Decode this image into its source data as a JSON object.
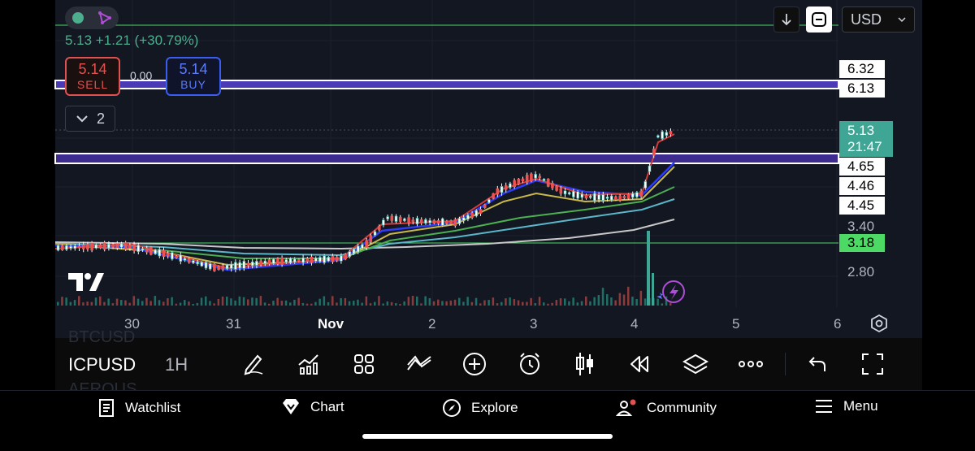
{
  "header": {
    "price_change": "5.13  +1.21 (+30.79%)",
    "sell": {
      "price": "5.14",
      "label": "SELL"
    },
    "buy": {
      "price": "5.14",
      "label": "BUY"
    },
    "spread": "0.00",
    "indicators_count": "2"
  },
  "top_controls": {
    "currency": "USD"
  },
  "price_axis": {
    "labels": [
      "6.32",
      "6.13",
      "4.65",
      "4.46",
      "4.45",
      "3.40",
      "3.18",
      "2.80"
    ],
    "current_price": "5.13",
    "countdown": "21:47"
  },
  "time_axis": {
    "labels": [
      "30",
      "31",
      "Nov",
      "2",
      "3",
      "4",
      "5",
      "6"
    ]
  },
  "toolbar": {
    "symbol": "ICPUSD",
    "interval": "1H",
    "ghost_above": "BTCUSD",
    "ghost_below": "AEROUS",
    "icons": [
      "draw-icon",
      "indicators-icon",
      "templates-icon",
      "compare-icon",
      "add-icon",
      "alert-icon",
      "candle-type-icon",
      "replay-icon",
      "layers-icon",
      "more-icon",
      "undo-icon",
      "fullscreen-icon"
    ]
  },
  "bottom_nav": {
    "items": [
      {
        "label": "Watchlist",
        "icon": "watchlist-icon"
      },
      {
        "label": "Chart",
        "icon": "chart-icon"
      },
      {
        "label": "Explore",
        "icon": "compass-icon"
      },
      {
        "label": "Community",
        "icon": "community-icon"
      },
      {
        "label": "Menu",
        "icon": "menu-icon"
      }
    ]
  },
  "colors": {
    "background": "#131722",
    "up": "#26a69a",
    "down": "#ef5350",
    "zone": "#3d2b8f",
    "green_line": "#4cd964"
  }
}
